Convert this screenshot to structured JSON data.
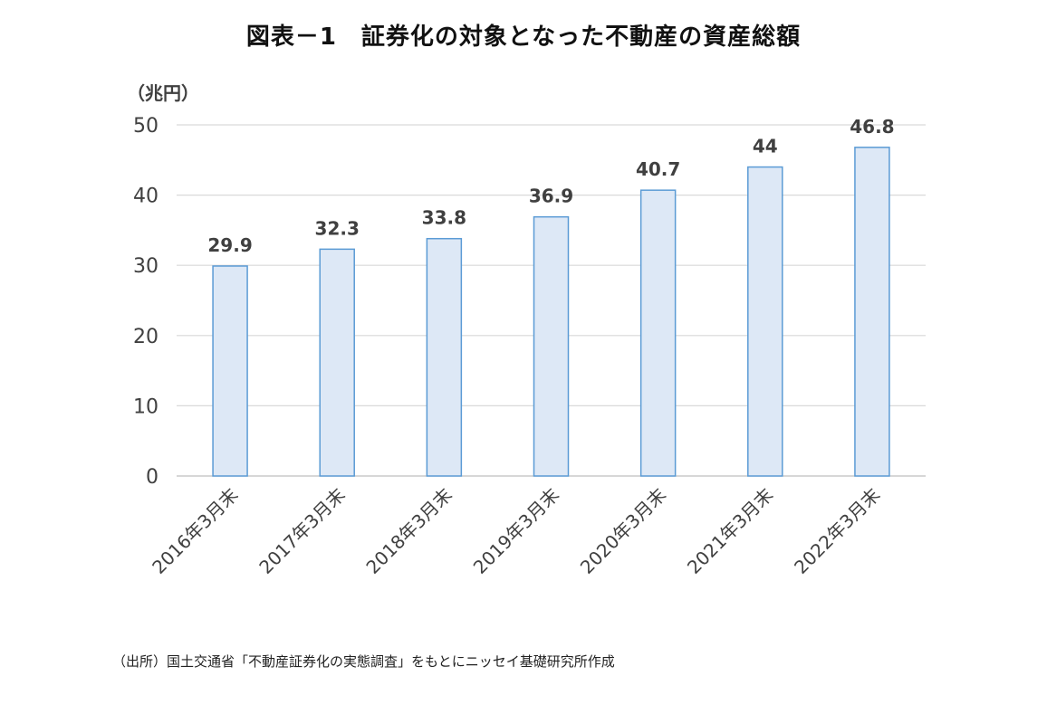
{
  "chart_data": {
    "type": "bar",
    "title": "図表－1　証券化の対象となった不動産の資産総額",
    "ylabel": "（兆円）",
    "xlabel": "",
    "categories": [
      "2016年3月末",
      "2017年3月末",
      "2018年3月末",
      "2019年3月末",
      "2020年3月末",
      "2021年3月末",
      "2022年3月末"
    ],
    "values": [
      29.9,
      32.3,
      33.8,
      36.9,
      40.7,
      44,
      46.8
    ],
    "data_labels": [
      "29.9",
      "32.3",
      "33.8",
      "36.9",
      "40.7",
      "44",
      "46.8"
    ],
    "ylim": [
      0,
      50
    ],
    "yticks": [
      0,
      10,
      20,
      30,
      40,
      50
    ],
    "grid": true,
    "legend": "none"
  },
  "colors": {
    "bar_fill": "#dde8f6",
    "bar_stroke": "#5b9bd5",
    "grid": "#d9d9d9",
    "axis": "#bfbfbf",
    "text": "#404040"
  },
  "source_note": "（出所）国土交通省「不動産証券化の実態調査」をもとにニッセイ基礎研究所作成"
}
